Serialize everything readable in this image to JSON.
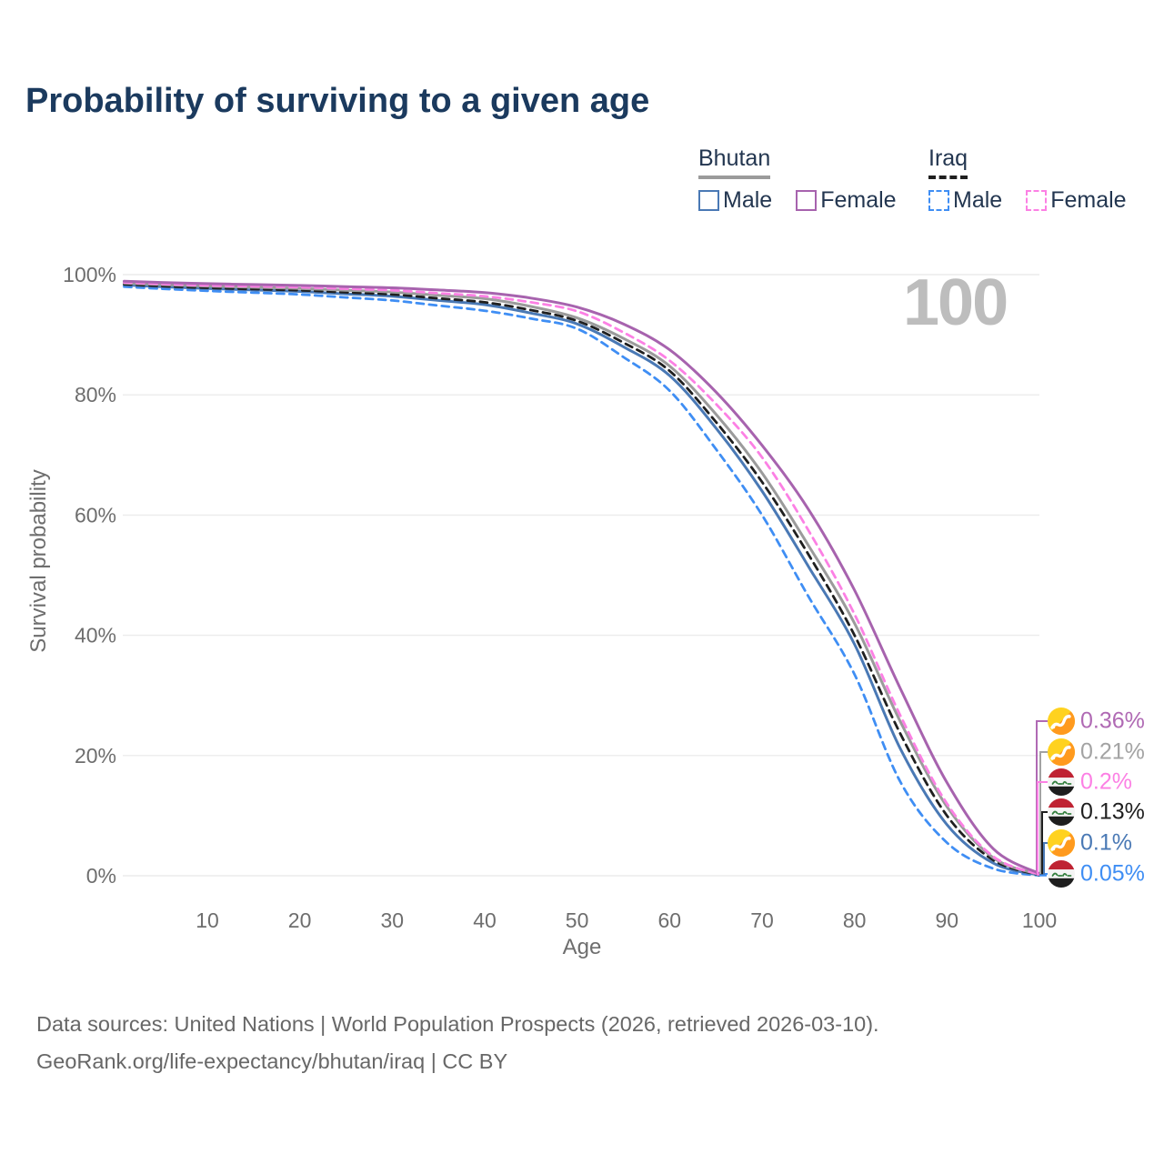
{
  "title": "Probability of surviving to a given age",
  "watermark": "100",
  "legend": {
    "groups": [
      {
        "name": "Bhutan",
        "line_style": "solid",
        "line_color": "#9b9b9b",
        "items": [
          {
            "label": "Male",
            "color": "#4a79b5",
            "dashed": false
          },
          {
            "label": "Female",
            "color": "#a763ae",
            "dashed": false
          }
        ]
      },
      {
        "name": "Iraq",
        "line_style": "dashed",
        "line_color": "#1f1f1f",
        "items": [
          {
            "label": "Male",
            "color": "#3f8ef4",
            "dashed": true
          },
          {
            "label": "Female",
            "color": "#fc80e4",
            "dashed": true
          }
        ]
      }
    ]
  },
  "axes": {
    "y_label": "Survival probability",
    "x_label": "Age",
    "y_ticks": [
      "0%",
      "20%",
      "40%",
      "60%",
      "80%",
      "100%"
    ],
    "x_ticks": [
      "10",
      "20",
      "30",
      "40",
      "50",
      "60",
      "70",
      "80",
      "90",
      "100"
    ]
  },
  "end_labels": [
    {
      "value": "0.36%",
      "series": "Bhutan Female",
      "flag": "bhutan",
      "color": "#b06ab4"
    },
    {
      "value": "0.21%",
      "series": "Bhutan",
      "flag": "bhutan",
      "color": "#a3a3a3"
    },
    {
      "value": "0.2%",
      "series": "Iraq Female",
      "flag": "iraq",
      "color": "#fc80e4"
    },
    {
      "value": "0.13%",
      "series": "Iraq",
      "flag": "iraq",
      "color": "#1f1f1f"
    },
    {
      "value": "0.1%",
      "series": "Bhutan Male",
      "flag": "bhutan",
      "color": "#4a79b5"
    },
    {
      "value": "0.05%",
      "series": "Iraq Male",
      "flag": "iraq",
      "color": "#3f8ef4"
    }
  ],
  "footer": {
    "line1": "Data sources: United Nations | World Population Prospects (2026, retrieved 2026-03-10).",
    "line2": "GeoRank.org/life-expectancy/bhutan/iraq | CC BY"
  },
  "chart_data": {
    "type": "line",
    "title": "Probability of surviving to a given age",
    "xlabel": "Age",
    "ylabel": "Survival probability",
    "x_range": [
      1,
      100
    ],
    "y_range_pct": [
      0,
      100
    ],
    "grid": "horizontal",
    "legend_position": "top-right",
    "ages": [
      1,
      5,
      10,
      15,
      20,
      25,
      30,
      35,
      40,
      45,
      50,
      55,
      60,
      65,
      70,
      75,
      80,
      85,
      90,
      95,
      100
    ],
    "series": [
      {
        "name": "Iraq Male",
        "country": "Iraq",
        "sex": "male",
        "style": "dashed",
        "color": "#3f8ef4",
        "end_value_pct": 0.05,
        "values": [
          98.0,
          97.65,
          97.3,
          97.0,
          96.7,
          96.2,
          95.7,
          94.85,
          94.0,
          92.7,
          91.0,
          86.3,
          80.7,
          71.0,
          60.0,
          46.5,
          33.5,
          15.5,
          5.5,
          1.2,
          0.05
        ]
      },
      {
        "name": "Bhutan Male",
        "country": "Bhutan",
        "sex": "male",
        "style": "solid",
        "color": "#4a79b5",
        "end_value_pct": 0.1,
        "values": [
          98.3,
          98.0,
          97.7,
          97.45,
          97.2,
          96.8,
          96.4,
          95.7,
          95.0,
          93.6,
          91.8,
          88.0,
          83.2,
          74.5,
          64.0,
          51.5,
          38.5,
          21.0,
          8.5,
          2.1,
          0.1
        ]
      },
      {
        "name": "Iraq",
        "country": "Iraq",
        "sex": "both",
        "style": "dashed",
        "color": "#1f1f1f",
        "end_value_pct": 0.13,
        "values": [
          98.4,
          98.1,
          97.8,
          97.6,
          97.4,
          97.05,
          96.7,
          96.05,
          95.4,
          94.1,
          92.3,
          88.7,
          84.0,
          75.5,
          65.5,
          53.5,
          40.0,
          23.5,
          10.0,
          2.6,
          0.13
        ]
      },
      {
        "name": "Bhutan",
        "country": "Bhutan",
        "sex": "both",
        "style": "solid",
        "color": "#9b9b9b",
        "end_value_pct": 0.21,
        "values": [
          98.6,
          98.35,
          98.1,
          97.9,
          97.7,
          97.4,
          97.1,
          96.55,
          96.0,
          94.7,
          92.8,
          89.4,
          84.8,
          76.8,
          67.0,
          55.0,
          42.0,
          25.5,
          11.5,
          3.0,
          0.21
        ]
      },
      {
        "name": "Iraq Female",
        "country": "Iraq",
        "sex": "female",
        "style": "dashed",
        "color": "#fc80e4",
        "end_value_pct": 0.2,
        "values": [
          98.7,
          98.45,
          98.2,
          98.05,
          97.9,
          97.65,
          97.4,
          96.9,
          96.4,
          95.4,
          93.9,
          90.4,
          85.7,
          78.5,
          69.6,
          57.5,
          43.5,
          26.5,
          12.0,
          3.2,
          0.2
        ]
      },
      {
        "name": "Bhutan Female",
        "country": "Bhutan",
        "sex": "female",
        "style": "solid",
        "color": "#a763ae",
        "end_value_pct": 0.36,
        "values": [
          98.9,
          98.7,
          98.5,
          98.35,
          98.2,
          98.0,
          97.8,
          97.45,
          97.0,
          96.1,
          94.6,
          91.8,
          87.5,
          80.5,
          71.6,
          61.0,
          47.5,
          31.0,
          15.5,
          4.5,
          0.36
        ]
      }
    ]
  }
}
